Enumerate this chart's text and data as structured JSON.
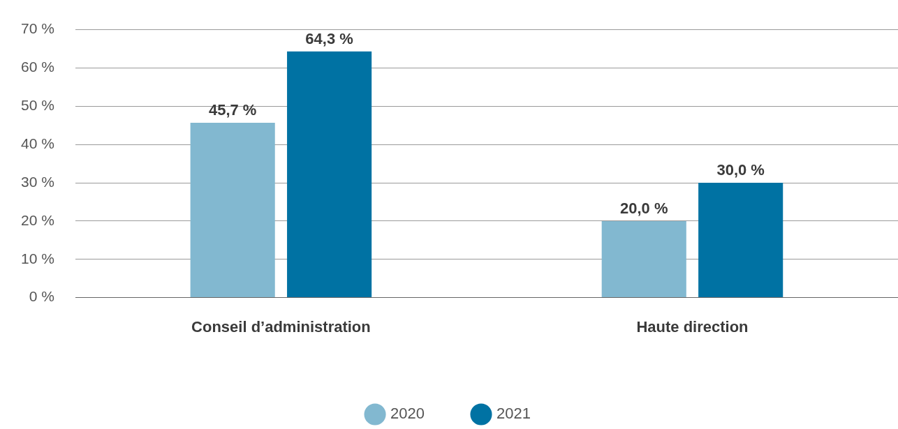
{
  "chart_data": {
    "type": "bar",
    "categories": [
      "Conseil d’administration",
      "Haute direction"
    ],
    "series": [
      {
        "name": "2020",
        "color": "#82b8d0",
        "values": [
          45.7,
          20.0
        ],
        "value_labels": [
          "45,7 %",
          "20,0 %"
        ]
      },
      {
        "name": "2021",
        "color": "#0072a3",
        "values": [
          64.3,
          30.0
        ],
        "value_labels": [
          "64,3 %",
          "30,0 %"
        ]
      }
    ],
    "ylim": [
      0,
      70
    ],
    "yticks": [
      {
        "value": 0,
        "label": "0 %"
      },
      {
        "value": 10,
        "label": "10 %"
      },
      {
        "value": 20,
        "label": "20 %"
      },
      {
        "value": 30,
        "label": "30 %"
      },
      {
        "value": 40,
        "label": "40 %"
      },
      {
        "value": 50,
        "label": "50 %"
      },
      {
        "value": 60,
        "label": "60 %"
      },
      {
        "value": 70,
        "label": "70 %"
      }
    ],
    "grid": "y",
    "legend": "bottom"
  }
}
